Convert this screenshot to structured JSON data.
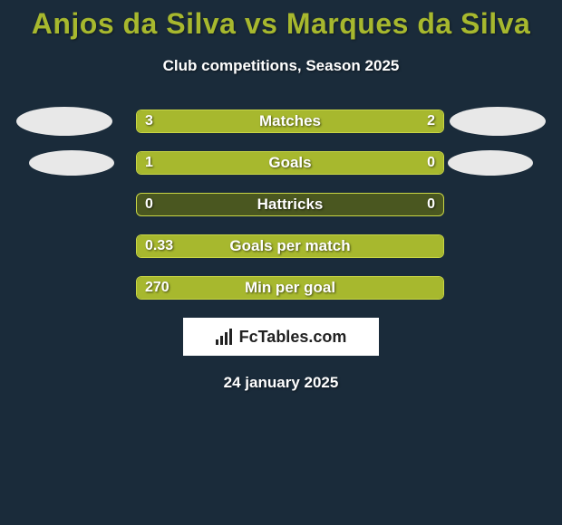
{
  "title": "Anjos da Silva vs Marques da Silva",
  "subtitle": "Club competitions, Season 2025",
  "date_text": "24 january 2025",
  "logo_text": "FcTables.com",
  "colors": {
    "background": "#1a2b3a",
    "accent": "#a7b82e",
    "bar_track": "#4a5720",
    "bar_border": "#c9d645",
    "text": "#ffffff",
    "ellipse": "#e8e8e8",
    "logo_bg": "#ffffff",
    "logo_text": "#222222"
  },
  "rows": [
    {
      "label": "Matches",
      "left_val": "3",
      "right_val": "2",
      "left_pct": 60,
      "right_pct": 40,
      "show_left_ellipse": true,
      "show_right_ellipse": true,
      "ellipse_small": false
    },
    {
      "label": "Goals",
      "left_val": "1",
      "right_val": "0",
      "left_pct": 77,
      "right_pct": 23,
      "show_left_ellipse": true,
      "show_right_ellipse": true,
      "ellipse_small": true
    },
    {
      "label": "Hattricks",
      "left_val": "0",
      "right_val": "0",
      "left_pct": 0,
      "right_pct": 0,
      "show_left_ellipse": false,
      "show_right_ellipse": false,
      "ellipse_small": false
    },
    {
      "label": "Goals per match",
      "left_val": "0.33",
      "right_val": "",
      "left_pct": 100,
      "right_pct": 0,
      "show_left_ellipse": false,
      "show_right_ellipse": false,
      "ellipse_small": false
    },
    {
      "label": "Min per goal",
      "left_val": "270",
      "right_val": "",
      "left_pct": 100,
      "right_pct": 0,
      "show_left_ellipse": false,
      "show_right_ellipse": false,
      "ellipse_small": false
    }
  ]
}
